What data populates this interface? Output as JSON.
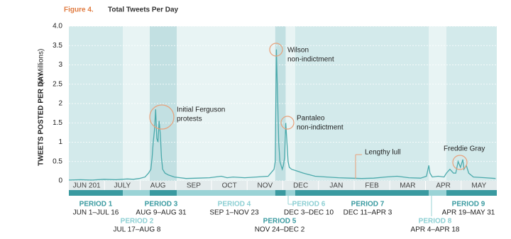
{
  "chart_data": {
    "type": "line",
    "title_prefix": "Figure 4.",
    "title": "Total Tweets Per Day",
    "y_label": "TWEETS POSTED PER DAY",
    "y_label_unit": "(in Millions)",
    "ylim": [
      0,
      4
    ],
    "yticks": [
      0,
      0.5,
      1,
      1.5,
      2,
      2.5,
      3,
      3.5,
      {
        "value": 4,
        "label": "4.0"
      }
    ],
    "xlim": [
      0,
      365
    ],
    "categories": [
      "JUN 201",
      "JULY",
      "AUG",
      "SEP",
      "OCT",
      "NOV",
      "DEC",
      "JAN",
      "FEB",
      "MAR",
      "APR",
      "MAY"
    ],
    "series": [
      {
        "name": "Tweets",
        "color": "#4aa9ab",
        "x": [
          0,
          10,
          20,
          30,
          40,
          50,
          55,
          60,
          65,
          68,
          70,
          71,
          72,
          73,
          74,
          75,
          76,
          77,
          78,
          79,
          80,
          82,
          85,
          90,
          95,
          100,
          110,
          120,
          130,
          135,
          140,
          150,
          160,
          170,
          175,
          176,
          177,
          178,
          179,
          180,
          181,
          182,
          183,
          184,
          185,
          186,
          187,
          188,
          190,
          195,
          200,
          210,
          220,
          230,
          240,
          250,
          260,
          270,
          280,
          290,
          300,
          305,
          307,
          308,
          310,
          315,
          320,
          322,
          325,
          328,
          330,
          332,
          334,
          336,
          337,
          339,
          341,
          345,
          355,
          364
        ],
        "values": [
          0.02,
          0.03,
          0.02,
          0.04,
          0.03,
          0.05,
          0.04,
          0.06,
          0.1,
          0.2,
          0.3,
          0.6,
          1.0,
          1.3,
          1.85,
          1.1,
          1.0,
          1.55,
          1.2,
          0.6,
          0.3,
          0.2,
          0.15,
          0.1,
          0.08,
          0.06,
          0.07,
          0.08,
          0.12,
          0.08,
          0.1,
          0.08,
          0.1,
          0.12,
          0.3,
          0.5,
          3.4,
          2.2,
          1.0,
          0.5,
          0.4,
          0.3,
          0.4,
          0.6,
          1.5,
          1.0,
          0.5,
          0.35,
          0.3,
          0.25,
          0.2,
          0.12,
          0.1,
          0.08,
          0.07,
          0.06,
          0.07,
          0.1,
          0.12,
          0.08,
          0.07,
          0.12,
          0.4,
          0.2,
          0.1,
          0.12,
          0.1,
          0.2,
          0.3,
          0.2,
          0.2,
          0.5,
          0.35,
          0.55,
          0.3,
          0.4,
          0.2,
          0.1,
          0.08,
          0.06
        ]
      }
    ],
    "periods": [
      {
        "name": "PERIOD 1",
        "dates": "JUN 1–JUL 16",
        "start": 0,
        "end": 46,
        "color": "#d3eaeb"
      },
      {
        "name": "PERIOD 2",
        "dates": "JUL 17–AUG 8",
        "start": 46,
        "end": 69,
        "color": "#e8f4f4"
      },
      {
        "name": "PERIOD 3",
        "dates": "AUG 9–AUG 31",
        "start": 69,
        "end": 92,
        "color": "#c2e0e2"
      },
      {
        "name": "PERIOD 4",
        "dates": "SEP 1–NOV 23",
        "start": 92,
        "end": 176,
        "color": "#e8f4f4"
      },
      {
        "name": "PERIOD 5",
        "dates": "NOV 24–DEC 2",
        "start": 176,
        "end": 185,
        "color": "#c2e0e2"
      },
      {
        "name": "PERIOD 6",
        "dates": "DEC 3–DEC 10",
        "start": 185,
        "end": 193,
        "color": "#e8f4f4"
      },
      {
        "name": "PERIOD 7",
        "dates": "DEC 11–APR 3",
        "start": 193,
        "end": 307,
        "color": "#d3eaeb"
      },
      {
        "name": "PERIOD 8",
        "dates": "APR 4–APR 18",
        "start": 307,
        "end": 322,
        "color": "#e8f4f4"
      },
      {
        "name": "PERIOD 9",
        "dates": "APR 19–MAY 31",
        "start": 322,
        "end": 365,
        "color": "#d3eaeb"
      }
    ],
    "annotations": [
      {
        "lines": [
          "Initial Ferguson",
          "protests"
        ]
      },
      {
        "lines": [
          "Wilson",
          "non-indictment"
        ]
      },
      {
        "lines": [
          "Pantaleo",
          "non-indictment"
        ]
      },
      {
        "lines": [
          "Lengthy lull"
        ]
      },
      {
        "lines": [
          "Freddie Gray"
        ]
      }
    ]
  }
}
